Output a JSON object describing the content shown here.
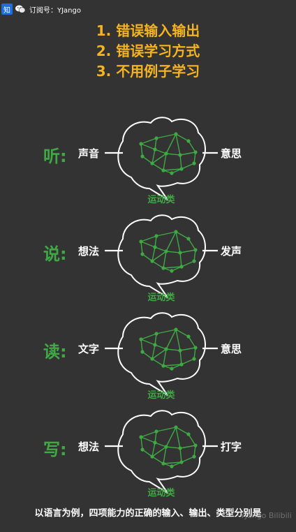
{
  "header": {
    "zhihu_icon_char": "知",
    "subscription_text": "订阅号：YJango"
  },
  "headline": {
    "lines": [
      "1. 错误输入输出",
      "2. 错误学习方式",
      "3. 不用例子学习"
    ],
    "color": "#f4b31f"
  },
  "rows": [
    {
      "label": "听:",
      "input": "声音",
      "output": "意思",
      "category": "运动类"
    },
    {
      "label": "说:",
      "input": "想法",
      "output": "发声",
      "category": "运动类"
    },
    {
      "label": "读:",
      "input": "文字",
      "output": "意思",
      "category": "运动类"
    },
    {
      "label": "写:",
      "input": "想法",
      "output": "打字",
      "category": "运动类"
    }
  ],
  "caption": "以语言为例，四项能力的正确的输入、输出、类型分别是",
  "watermark": "YJango Bilibili",
  "colors": {
    "accent_green": "#3fa944",
    "background": "#333333",
    "text": "#ffffff"
  }
}
